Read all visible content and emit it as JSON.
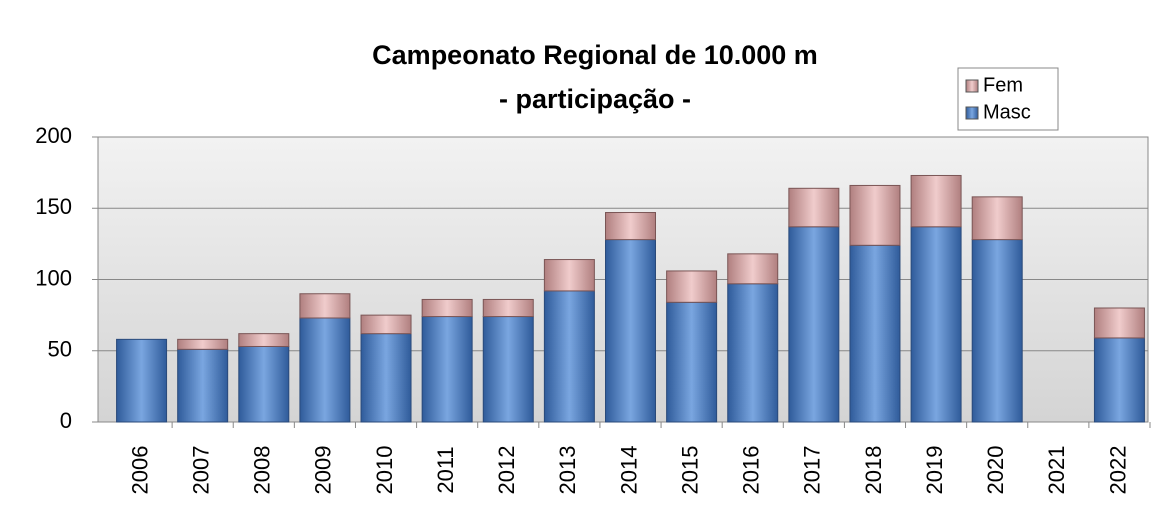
{
  "chart_data": {
    "type": "stacked_bar",
    "title": "Campeonato Regional de 10.000 m",
    "subtitle": "- participação -",
    "categories": [
      "2006",
      "2007",
      "2008",
      "2009",
      "2010",
      "2011",
      "2012",
      "2013",
      "2014",
      "2015",
      "2016",
      "2017",
      "2018",
      "2019",
      "2020",
      "2021",
      "2022"
    ],
    "series": [
      {
        "name": "Masc",
        "color": "#4f81bd",
        "values": [
          58,
          51,
          53,
          73,
          62,
          74,
          74,
          92,
          128,
          84,
          97,
          137,
          124,
          137,
          128,
          null,
          59
        ]
      },
      {
        "name": "Fem",
        "color": "#d9a9a9",
        "values": [
          0,
          7,
          9,
          17,
          13,
          12,
          12,
          22,
          19,
          22,
          21,
          27,
          42,
          36,
          30,
          null,
          21
        ]
      }
    ],
    "ylim": [
      0,
      200
    ],
    "yticks": [
      0,
      50,
      100,
      150,
      200
    ],
    "grid": true,
    "legend": "top-right"
  }
}
